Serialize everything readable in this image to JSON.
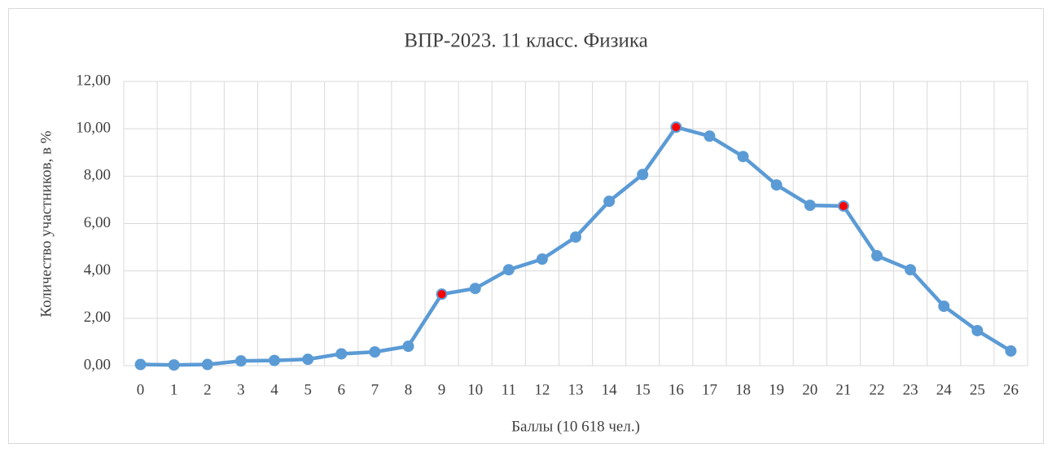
{
  "chart_data": {
    "type": "line",
    "title": "ВПР-2023. 11 класс. Физика",
    "x_label": "Баллы (10 618 чел.)",
    "y_label": "Количество участников, в %",
    "categories": [
      "0",
      "1",
      "2",
      "3",
      "4",
      "5",
      "6",
      "7",
      "8",
      "9",
      "10",
      "11",
      "12",
      "13",
      "14",
      "15",
      "16",
      "17",
      "18",
      "19",
      "20",
      "21",
      "22",
      "23",
      "24",
      "25",
      "26"
    ],
    "series": [
      {
        "name": "Количество участников, в %",
        "color": "#5b9bd5",
        "highlight_color": "#ff0000",
        "highlight": [
          "9",
          "16",
          "21"
        ],
        "values": [
          0.05,
          0.03,
          0.05,
          0.2,
          0.22,
          0.27,
          0.5,
          0.58,
          0.82,
          3.02,
          3.26,
          4.05,
          4.5,
          5.43,
          6.94,
          8.07,
          10.07,
          9.69,
          8.83,
          7.63,
          6.77,
          6.74,
          4.64,
          4.05,
          2.51,
          1.48,
          0.62
        ]
      }
    ],
    "ylim": [
      0,
      12
    ],
    "yticks": [
      {
        "value": 0,
        "label": "0,00"
      },
      {
        "value": 2,
        "label": "2,00"
      },
      {
        "value": 4,
        "label": "4,00"
      },
      {
        "value": 6,
        "label": "6,00"
      },
      {
        "value": 8,
        "label": "8,00"
      },
      {
        "value": 10,
        "label": "10,00"
      },
      {
        "value": 12,
        "label": "12,00"
      }
    ],
    "grid": true
  }
}
